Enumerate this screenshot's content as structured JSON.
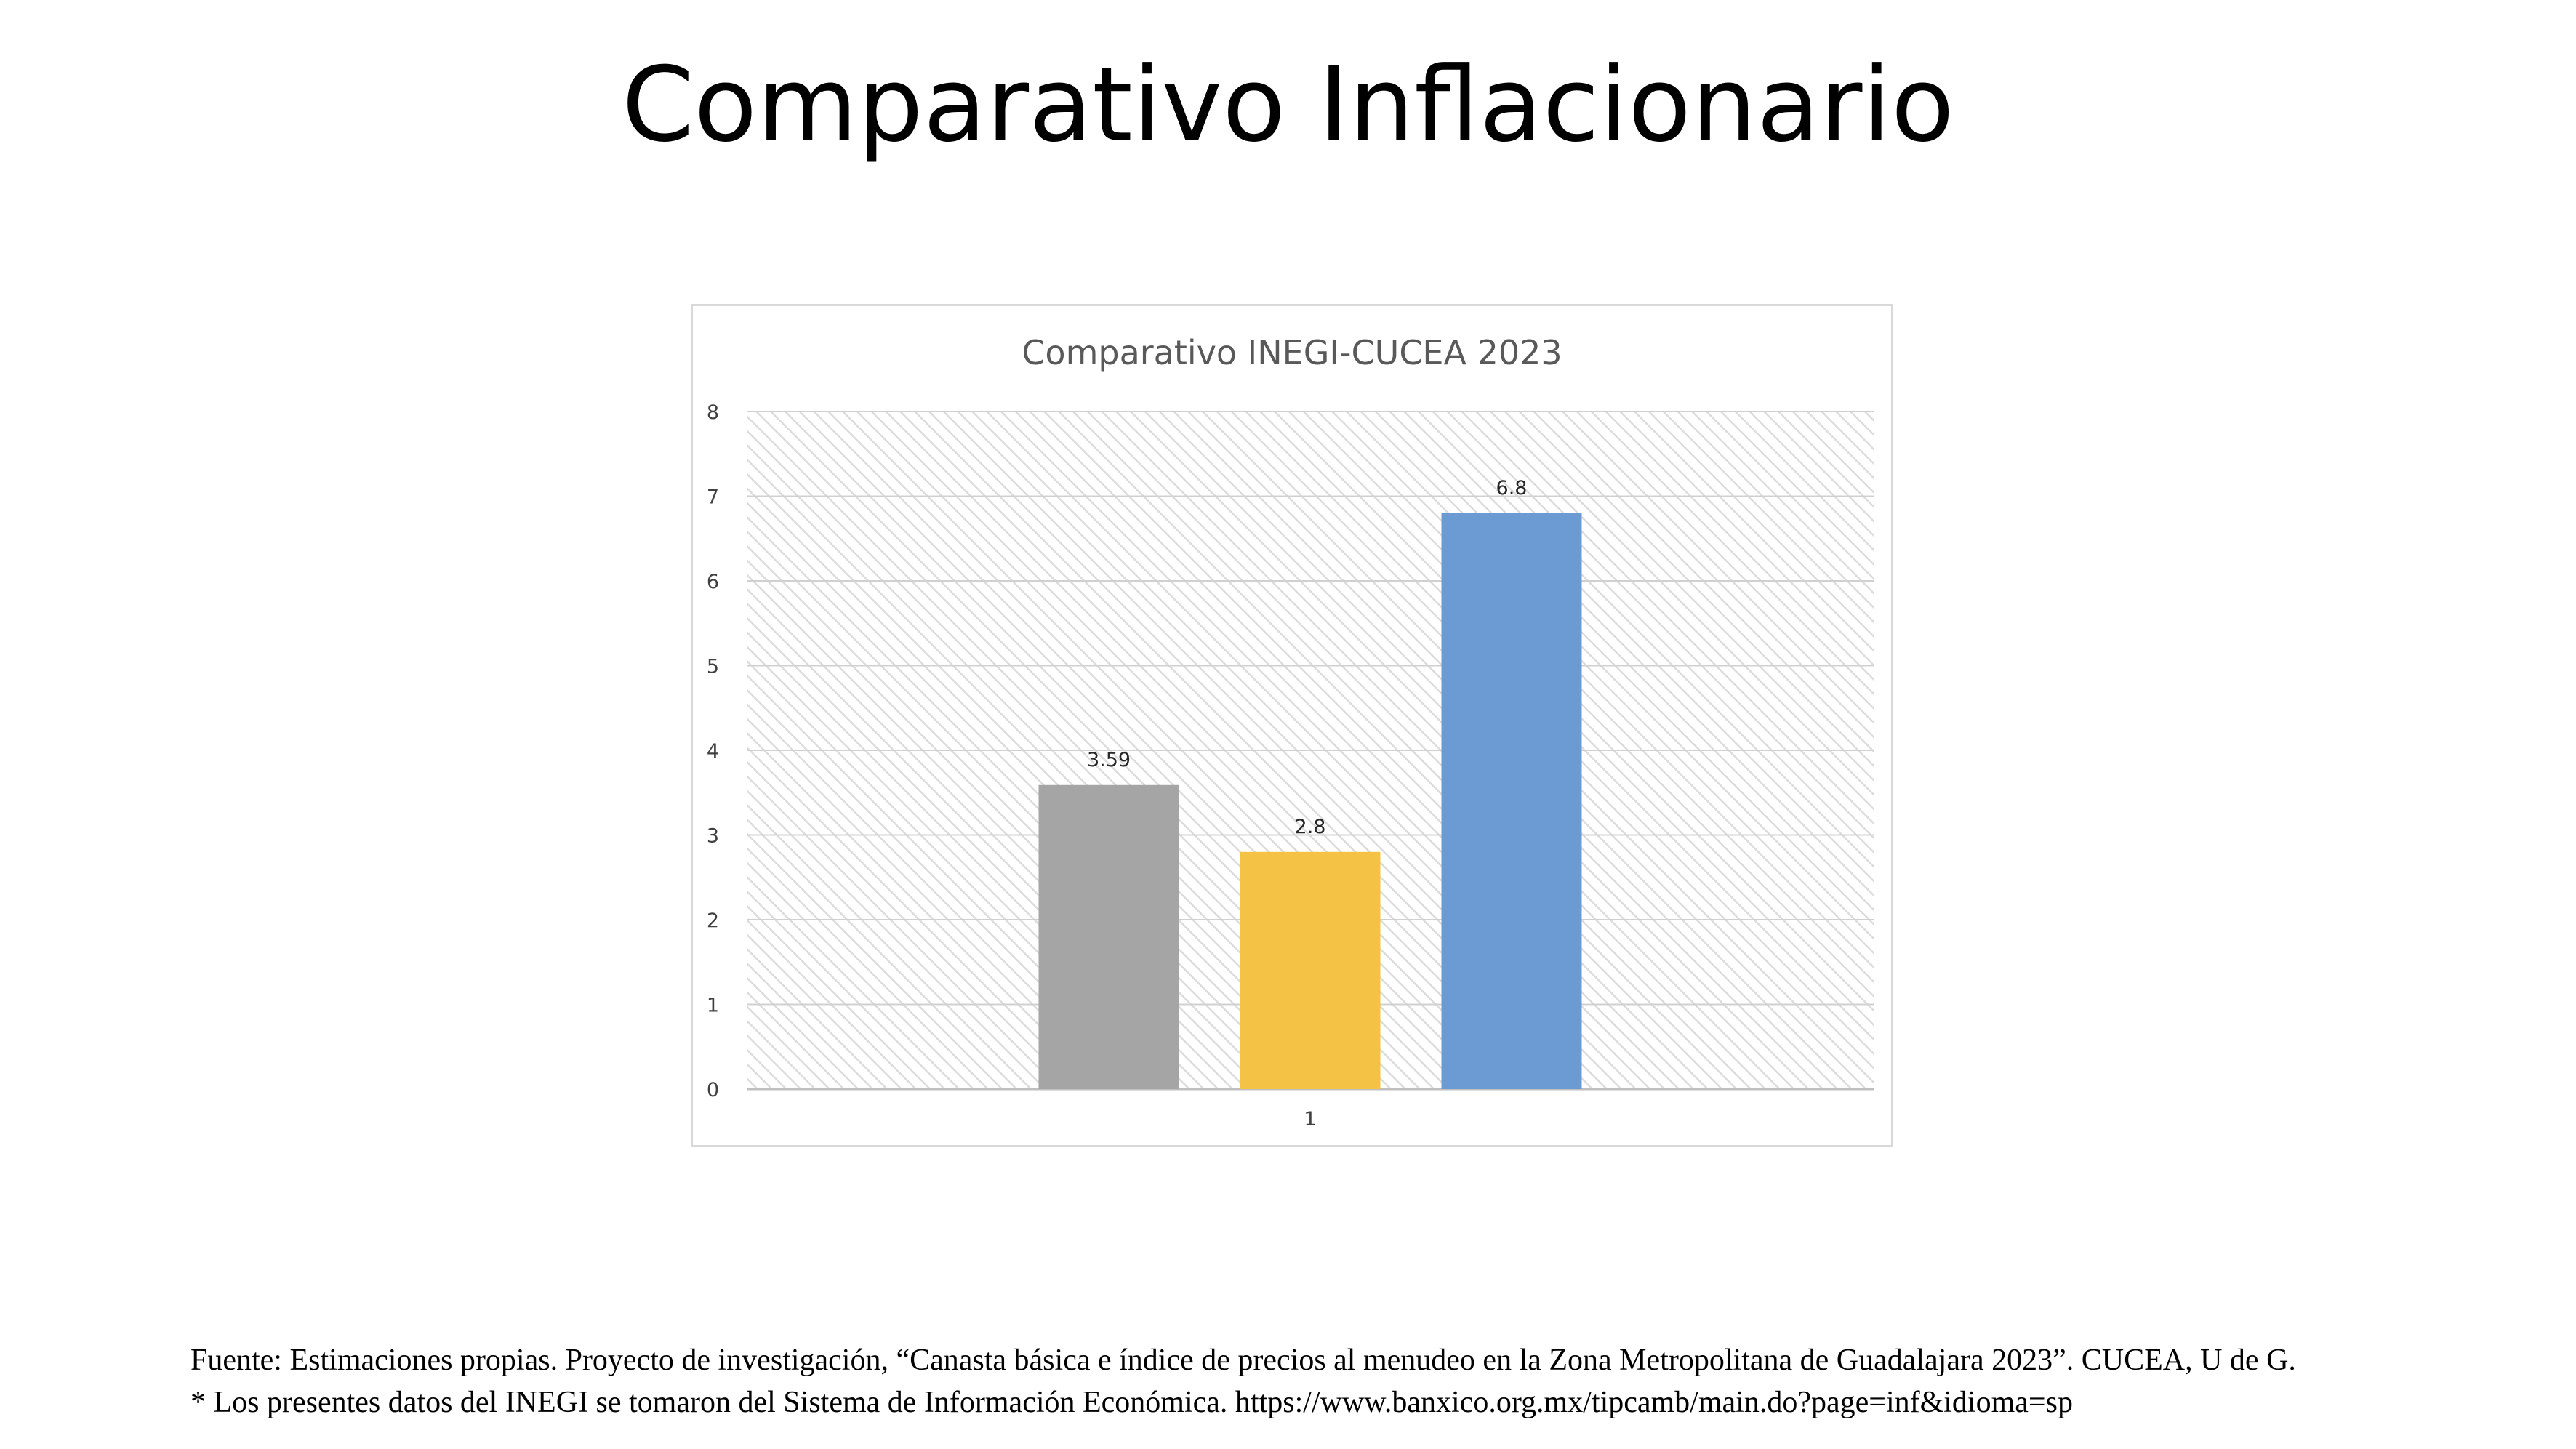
{
  "slide": {
    "title": "Comparativo Inflacionario"
  },
  "chart_data": {
    "type": "bar",
    "title": "Comparativo INEGI-CUCEA 2023",
    "categories": [
      "1"
    ],
    "series": [
      {
        "values": [
          3.59
        ],
        "color": "#a5a5a5"
      },
      {
        "values": [
          2.8
        ],
        "color": "#f4c244"
      },
      {
        "values": [
          6.8
        ],
        "color": "#6b9bd2"
      }
    ],
    "data_labels": [
      "3.59",
      "2.8",
      "6.8"
    ],
    "ylim": [
      0,
      8
    ],
    "y_ticks": [
      0,
      1,
      2,
      3,
      4,
      5,
      6,
      7,
      8
    ],
    "xlabel": "",
    "ylabel": "",
    "grid": true,
    "legend": "none",
    "plot_background": "hatched light gray"
  },
  "footer": {
    "line1": "Fuente: Estimaciones propias. Proyecto de investigación, “Canasta básica e índice de precios al menudeo en la Zona Metropolitana de Guadalajara 2023”. CUCEA, U de G.",
    "line2": "* Los presentes datos del INEGI se tomaron del Sistema de Información Económica. https://www.banxico.org.mx/tipcamb/main.do?page=inf&idioma=sp"
  }
}
